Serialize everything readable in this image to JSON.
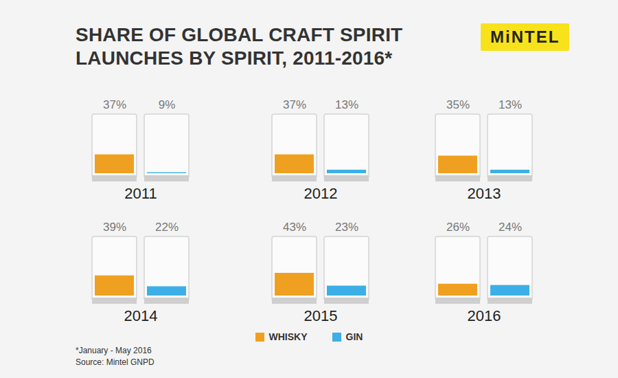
{
  "chart_data": {
    "type": "bar",
    "title": "SHARE OF GLOBAL CRAFT SPIRIT LAUNCHES BY SPIRIT, 2011-2016*",
    "logo": "MiNTEL",
    "categories": [
      "2011",
      "2012",
      "2013",
      "2014",
      "2015",
      "2016"
    ],
    "series": [
      {
        "name": "WHISKY",
        "color": "#f0a021",
        "values": [
          37,
          37,
          35,
          39,
          43,
          26
        ],
        "value_labels": [
          "37%",
          "37%",
          "35%",
          "39%",
          "43%",
          "26%"
        ]
      },
      {
        "name": "GIN",
        "color": "#3cb0e6",
        "values": [
          9,
          13,
          13,
          22,
          23,
          24
        ],
        "value_labels": [
          "9%",
          "13%",
          "13%",
          "22%",
          "23%",
          "24%"
        ]
      }
    ],
    "ylim": [
      0,
      100
    ],
    "tick_labels": false,
    "data_labels": true,
    "legend": "bottom",
    "annotations": [
      "*January - May 2016",
      "Source: Mintel GNPD"
    ]
  }
}
